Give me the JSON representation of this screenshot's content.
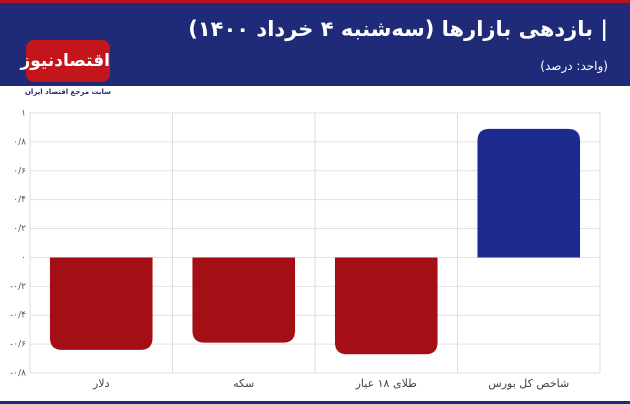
{
  "logo": {
    "name": "اقتصادنیوز",
    "tagline": "سایت مرجع اقتصاد ایران"
  },
  "chart_data": {
    "type": "bar",
    "title": "| بازدهی بازارها (سه‌شنبه ۴ خرداد ۱۴۰۰)",
    "subtitle": "(واحد: درصد)",
    "categories": [
      "دلار",
      "سکه",
      "طلای ۱۸ عیار",
      "شاخص کل بورس"
    ],
    "values": [
      -0.64,
      -0.59,
      -0.67,
      0.89
    ],
    "colors": [
      "#a30f14",
      "#a30f14",
      "#a30f14",
      "#1d2b8f"
    ],
    "ylim": [
      -0.8,
      1
    ],
    "yticks": [
      {
        "value": -0.8,
        "label": "-۰/۸"
      },
      {
        "value": -0.6,
        "label": "-۰/۶"
      },
      {
        "value": -0.4,
        "label": "-۰/۴"
      },
      {
        "value": -0.2,
        "label": "-۰/۲"
      },
      {
        "value": 0,
        "label": "۰"
      },
      {
        "value": 0.2,
        "label": "۰/۲"
      },
      {
        "value": 0.4,
        "label": "۰/۴"
      },
      {
        "value": 0.6,
        "label": "۰/۶"
      },
      {
        "value": 0.8,
        "label": "۰/۸"
      },
      {
        "value": 1,
        "label": "۱"
      }
    ],
    "grid": true
  }
}
